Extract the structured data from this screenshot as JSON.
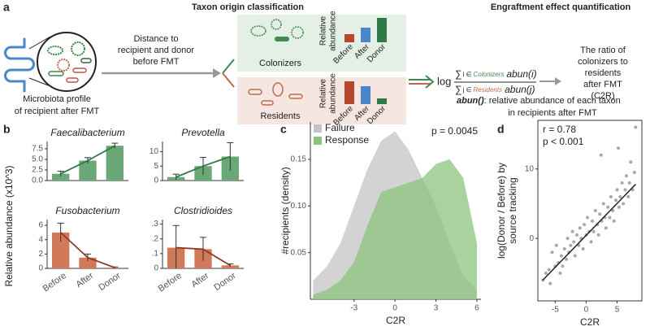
{
  "panels": {
    "a": {
      "label": "a",
      "left_title": "Taxon origin classification",
      "right_title": "Engraftment effect quantification",
      "profile_lines": [
        "Microbiota profile",
        "of recipient after FMT"
      ],
      "distance_lines": [
        "Distance to",
        "recipient and donor",
        "before FMT"
      ],
      "colonizers": "Colonizers",
      "residents": "Residents",
      "abundance_lines": [
        "Relative",
        "abundance"
      ],
      "bar_categories": [
        "Before",
        "After",
        "Donor"
      ],
      "formula": {
        "log": "log",
        "sum": "∑",
        "numerator_index": "i ∈",
        "numerator_group": "Colonizers",
        "numerator_term": "abun(i)",
        "denominator_index": "j ∈",
        "denominator_group": "Residents",
        "denominator_term": "abun(j)"
      },
      "ratio_lines": [
        "The ratio of",
        "colonizers to",
        "residents",
        "after FMT",
        "(C2R)"
      ],
      "abun_name": "abun()",
      "abun_lines": [
        ": relative abundance of each taxon",
        "in recipients after FMT"
      ]
    },
    "b": {
      "label": "b",
      "ylabel": "Relative abundance (x10^3)"
    },
    "c": {
      "label": "c"
    },
    "d": {
      "label": "d"
    }
  },
  "chart_data": [
    {
      "type": "bar",
      "title": "Faecalibacterium",
      "categories": [
        null,
        null,
        null
      ],
      "values": [
        1.6,
        4.7,
        8.2
      ],
      "errors": [
        0.6,
        0.7,
        0.6
      ],
      "color": "#6aa877",
      "line_color": "#2f7a45",
      "ylim": [
        0,
        9.2
      ],
      "yticks": [
        {
          "value": 0,
          "label": "0.0"
        },
        2.5,
        {
          "value": 5,
          "label": "5.0"
        },
        7.5
      ]
    },
    {
      "type": "bar",
      "title": "Prevotella",
      "categories": [
        null,
        null,
        null
      ],
      "values": [
        1.2,
        5.0,
        8.3
      ],
      "errors": [
        1.0,
        3.0,
        4.8
      ],
      "color": "#6aa877",
      "line_color": "#2f7a45",
      "ylim": [
        0,
        13.5
      ],
      "yticks": [
        0,
        5,
        10
      ]
    },
    {
      "type": "bar",
      "title": "Fusobacterium",
      "categories": [
        "Before",
        "After",
        "Donor"
      ],
      "values": [
        5.0,
        1.5,
        0.1
      ],
      "errors": [
        1.3,
        0.5,
        0.1
      ],
      "color": "#d07a5a",
      "line_color": "#8c3a2a",
      "ylim": [
        0,
        6.8
      ],
      "yticks": [
        0,
        2,
        4,
        6
      ]
    },
    {
      "type": "bar",
      "title": "Clostridioides",
      "categories": [
        "Before",
        "After",
        "Donor"
      ],
      "values": [
        0.14,
        0.13,
        0.02
      ],
      "errors": [
        0.15,
        0.08,
        0.01
      ],
      "color": "#d07a5a",
      "line_color": "#8c3a2a",
      "ylim": [
        0,
        0.33
      ],
      "yticks": [
        0,
        {
          "value": 0.1,
          "label": ".1"
        },
        {
          "value": 0.2,
          "label": ".2"
        },
        {
          "value": 0.3,
          "label": ".3"
        }
      ]
    },
    {
      "type": "area",
      "xlabel": "C2R",
      "ylabel": "#recipients (density)",
      "x": [
        -6,
        -5,
        -4,
        -3,
        -2,
        -1,
        0,
        1,
        2,
        3,
        4,
        5,
        6
      ],
      "series": [
        {
          "name": "Failure",
          "color": "#c4c4c4",
          "values": [
            0.02,
            0.035,
            0.06,
            0.1,
            0.14,
            0.17,
            0.18,
            0.16,
            0.13,
            0.1,
            0.06,
            0.025,
            0.01
          ]
        },
        {
          "name": "Response",
          "color": "#8cc47e",
          "values": [
            0.005,
            0.01,
            0.02,
            0.04,
            0.08,
            0.115,
            0.12,
            0.125,
            0.13,
            0.145,
            0.15,
            0.13,
            0.06
          ]
        }
      ],
      "xlim": [
        -6.2,
        6.3
      ],
      "xticks": [
        -3,
        0,
        3,
        6
      ],
      "ylim": [
        0,
        0.19
      ],
      "yticks": [
        {
          "value": 0.05,
          "label": "0.05"
        },
        {
          "value": 0.1,
          "label": "0.10"
        },
        {
          "value": 0.15,
          "label": "0.15"
        }
      ],
      "legend": "upper left",
      "annotations": [
        "p = 0.0045"
      ],
      "annotation_corner": "upper right"
    },
    {
      "type": "scatter",
      "xlabel": "C2R",
      "ylabel": [
        "log(Donor / Before) by",
        "source tracking"
      ],
      "color": "#a8a8a8",
      "x": [
        -7,
        -6.5,
        -6,
        -5.8,
        -5.5,
        -5,
        -4.8,
        -4.5,
        -4.2,
        -4,
        -3.5,
        -3.2,
        -3,
        -2.8,
        -2.5,
        -2.2,
        -2,
        -1.8,
        -1.5,
        -1.2,
        -1,
        -0.8,
        -0.5,
        -0.3,
        0,
        0.2,
        0.5,
        0.8,
        1,
        1.2,
        1.5,
        1.8,
        2,
        2.2,
        2.5,
        2.8,
        3,
        3.2,
        3.5,
        3.8,
        4,
        4.3,
        4.5,
        4.8,
        5,
        5.3,
        5.5,
        5.8,
        6,
        6.3,
        6.5,
        6.8,
        7,
        7.2,
        7.5,
        7.8,
        8,
        -3.8,
        2.4,
        5.2
      ],
      "y": [
        -6,
        -5,
        -4.5,
        -6.5,
        -2,
        -4,
        -1,
        -3.5,
        -5,
        -2.5,
        -1.5,
        -3,
        0,
        -2,
        -1,
        1,
        -0.5,
        -2.5,
        0.5,
        -1,
        1.5,
        0,
        -1.5,
        2,
        0.5,
        3,
        1,
        -0.5,
        2.5,
        1,
        4,
        2,
        0.5,
        3.5,
        2.5,
        5,
        3,
        1.5,
        4.5,
        3,
        6,
        4,
        2.5,
        5.5,
        7,
        4.5,
        6,
        8,
        5,
        7,
        9,
        6,
        8,
        11,
        7,
        9.5,
        16,
        -4,
        12,
        13
      ],
      "fit": {
        "x": [
          -7,
          8
        ],
        "y": [
          -6,
          7.8
        ],
        "color": "#222"
      },
      "xlim": [
        -7.8,
        9
      ],
      "xticks": [
        -5,
        0,
        5
      ],
      "ylim": [
        -9,
        17
      ],
      "yticks": [
        0,
        10
      ],
      "annotations": [
        "r = 0.78",
        "p < 0.001"
      ],
      "annotation_corner": "upper left"
    }
  ]
}
